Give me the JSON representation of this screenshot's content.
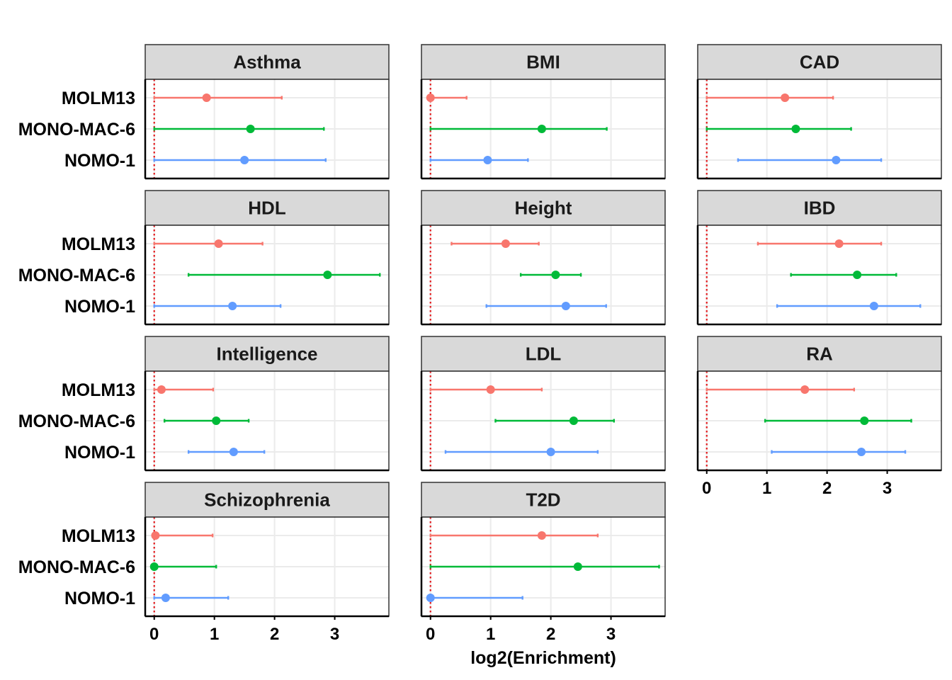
{
  "chart_data": {
    "type": "forest",
    "xlabel": "log2(Enrichment)",
    "xlim": [
      -0.15,
      3.9
    ],
    "x_ticks": [
      0,
      1,
      2,
      3
    ],
    "reference_line": 0,
    "rows": [
      "MOLM13",
      "MONO-MAC-6",
      "NOMO-1"
    ],
    "colors": {
      "MOLM13": "#F8766D",
      "MONO-MAC-6": "#00BA38",
      "NOMO-1": "#619CFF"
    },
    "panels": [
      {
        "title": "Asthma",
        "points": [
          {
            "row": "MOLM13",
            "est": 0.87,
            "lo": 0.0,
            "hi": 2.12
          },
          {
            "row": "MONO-MAC-6",
            "est": 1.6,
            "lo": 0.0,
            "hi": 2.82
          },
          {
            "row": "NOMO-1",
            "est": 1.5,
            "lo": 0.0,
            "hi": 2.85
          }
        ]
      },
      {
        "title": "BMI",
        "points": [
          {
            "row": "MOLM13",
            "est": 0.0,
            "lo": 0.0,
            "hi": 0.6
          },
          {
            "row": "MONO-MAC-6",
            "est": 1.85,
            "lo": 0.0,
            "hi": 2.93
          },
          {
            "row": "NOMO-1",
            "est": 0.95,
            "lo": 0.0,
            "hi": 1.62
          }
        ]
      },
      {
        "title": "CAD",
        "points": [
          {
            "row": "MOLM13",
            "est": 1.3,
            "lo": 0.0,
            "hi": 2.1
          },
          {
            "row": "MONO-MAC-6",
            "est": 1.48,
            "lo": 0.0,
            "hi": 2.4
          },
          {
            "row": "NOMO-1",
            "est": 2.15,
            "lo": 0.52,
            "hi": 2.9
          }
        ]
      },
      {
        "title": "HDL",
        "points": [
          {
            "row": "MOLM13",
            "est": 1.07,
            "lo": 0.0,
            "hi": 1.8
          },
          {
            "row": "MONO-MAC-6",
            "est": 2.88,
            "lo": 0.57,
            "hi": 3.75
          },
          {
            "row": "NOMO-1",
            "est": 1.3,
            "lo": 0.0,
            "hi": 2.1
          }
        ]
      },
      {
        "title": "Height",
        "points": [
          {
            "row": "MOLM13",
            "est": 1.25,
            "lo": 0.35,
            "hi": 1.8
          },
          {
            "row": "MONO-MAC-6",
            "est": 2.08,
            "lo": 1.5,
            "hi": 2.5
          },
          {
            "row": "NOMO-1",
            "est": 2.25,
            "lo": 0.93,
            "hi": 2.92
          }
        ]
      },
      {
        "title": "IBD",
        "points": [
          {
            "row": "MOLM13",
            "est": 2.2,
            "lo": 0.85,
            "hi": 2.9
          },
          {
            "row": "MONO-MAC-6",
            "est": 2.5,
            "lo": 1.4,
            "hi": 3.15
          },
          {
            "row": "NOMO-1",
            "est": 2.78,
            "lo": 1.17,
            "hi": 3.55
          }
        ]
      },
      {
        "title": "Intelligence",
        "points": [
          {
            "row": "MOLM13",
            "est": 0.12,
            "lo": 0.0,
            "hi": 0.98
          },
          {
            "row": "MONO-MAC-6",
            "est": 1.03,
            "lo": 0.17,
            "hi": 1.57
          },
          {
            "row": "NOMO-1",
            "est": 1.32,
            "lo": 0.57,
            "hi": 1.83
          }
        ]
      },
      {
        "title": "LDL",
        "points": [
          {
            "row": "MOLM13",
            "est": 1.0,
            "lo": 0.0,
            "hi": 1.85
          },
          {
            "row": "MONO-MAC-6",
            "est": 2.38,
            "lo": 1.08,
            "hi": 3.05
          },
          {
            "row": "NOMO-1",
            "est": 2.0,
            "lo": 0.25,
            "hi": 2.78
          }
        ]
      },
      {
        "title": "RA",
        "points": [
          {
            "row": "MOLM13",
            "est": 1.63,
            "lo": 0.0,
            "hi": 2.45
          },
          {
            "row": "MONO-MAC-6",
            "est": 2.62,
            "lo": 0.97,
            "hi": 3.4
          },
          {
            "row": "NOMO-1",
            "est": 2.57,
            "lo": 1.08,
            "hi": 3.3
          }
        ]
      },
      {
        "title": "Schizophrenia",
        "points": [
          {
            "row": "MOLM13",
            "est": 0.02,
            "lo": 0.0,
            "hi": 0.97
          },
          {
            "row": "MONO-MAC-6",
            "est": 0.0,
            "lo": 0.0,
            "hi": 1.03
          },
          {
            "row": "NOMO-1",
            "est": 0.19,
            "lo": 0.0,
            "hi": 1.23
          }
        ]
      },
      {
        "title": "T2D",
        "points": [
          {
            "row": "MOLM13",
            "est": 1.85,
            "lo": 0.0,
            "hi": 2.78
          },
          {
            "row": "MONO-MAC-6",
            "est": 2.45,
            "lo": 0.0,
            "hi": 3.8
          },
          {
            "row": "NOMO-1",
            "est": 0.0,
            "lo": 0.0,
            "hi": 1.53
          }
        ]
      }
    ]
  }
}
